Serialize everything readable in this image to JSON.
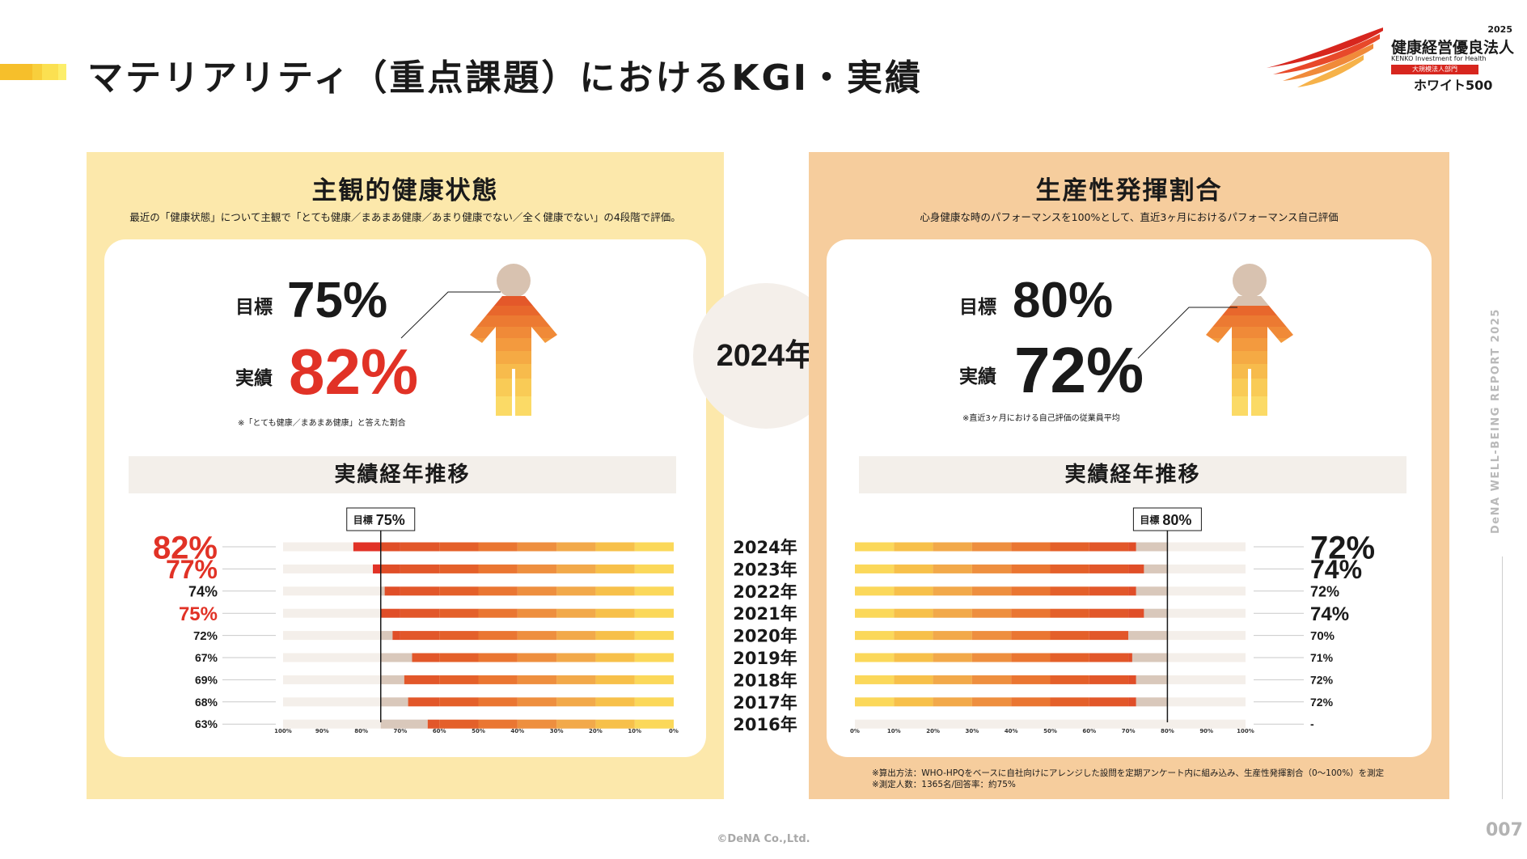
{
  "page": {
    "title": "マテリアリティ（重点課題）におけるKGI・実績",
    "copyright": "©DeNA Co.,Ltd.",
    "page_number": "007",
    "side_text": "DeNA WELL-BEING REPORT 2025"
  },
  "logo": {
    "year": "2025",
    "title": "健康経営優良法人",
    "sub": "KENKO Investment for Health",
    "band": "大規模法人部門",
    "white": "ホワイト500"
  },
  "accent_colors": [
    "#f6bf2b",
    "#f8cf3c",
    "#fbe051",
    "#fcee6a"
  ],
  "center_year": "2024年",
  "left_panel": {
    "title": "主観的健康状態",
    "description": "最近の「健康状態」について主観で「とても健康／まあまあ健康／あまり健康でない／全く健康でない」の4段階で評価。",
    "target_label": "目標",
    "target_value": "75%",
    "actual_label": "実績",
    "actual_value": "82%",
    "note": "※「とても健康／まあまあ健康」と答えた割合",
    "trend_title": "実績経年推移",
    "target_marker": "75%"
  },
  "right_panel": {
    "title": "生産性発揮割合",
    "description": "心身健康な時のパフォーマンスを100%として、直近3ヶ月におけるパフォーマンス自己評価",
    "target_label": "目標",
    "target_value": "80%",
    "actual_label": "実績",
    "actual_value": "72%",
    "note": "※直近3ヶ月における自己評価の従業員平均",
    "trend_title": "実績経年推移",
    "target_marker": "80%",
    "footnote_1": "※算出方法：WHO-HPQをベースに自社向けにアレンジした設問を定期アンケート内に組み込み、生産性発揮割合（0〜100%）を測定",
    "footnote_2": "※測定人数：1365名/回答率：約75%"
  },
  "chart_data": [
    {
      "type": "bar",
      "title": "主観的健康状態 実績経年推移",
      "orientation": "horizontal",
      "axis_direction": "reversed",
      "categories": [
        "2024年",
        "2023年",
        "2022年",
        "2021年",
        "2020年",
        "2019年",
        "2018年",
        "2017年",
        "2016年"
      ],
      "values": [
        82,
        77,
        74,
        75,
        72,
        67,
        69,
        68,
        63
      ],
      "value_labels": [
        "82%",
        "77%",
        "74%",
        "75%",
        "72%",
        "67%",
        "69%",
        "68%",
        "63%"
      ],
      "highlight": [
        true,
        true,
        false,
        true,
        false,
        false,
        false,
        false,
        false
      ],
      "target": 75,
      "target_label": "目標",
      "xlim": [
        0,
        100
      ],
      "ticks": [
        "100%",
        "90%",
        "80%",
        "70%",
        "60%",
        "50%",
        "40%",
        "30%",
        "20%",
        "10%",
        "0%"
      ],
      "tick_values": [
        100,
        90,
        80,
        70,
        60,
        50,
        40,
        30,
        20,
        10,
        0
      ]
    },
    {
      "type": "bar",
      "title": "生産性発揮割合 実績経年推移",
      "orientation": "horizontal",
      "axis_direction": "normal",
      "categories": [
        "2024年",
        "2023年",
        "2022年",
        "2021年",
        "2020年",
        "2019年",
        "2018年",
        "2017年",
        "2016年"
      ],
      "values": [
        72,
        74,
        72,
        74,
        70,
        71,
        72,
        72,
        null
      ],
      "value_labels": [
        "72%",
        "74%",
        "72%",
        "74%",
        "70%",
        "71%",
        "72%",
        "72%",
        "-"
      ],
      "highlight": [
        true,
        true,
        false,
        false,
        false,
        false,
        false,
        false,
        false
      ],
      "target": 80,
      "target_label": "目標",
      "xlim": [
        0,
        100
      ],
      "ticks": [
        "0%",
        "10%",
        "20%",
        "30%",
        "40%",
        "50%",
        "60%",
        "70%",
        "80%",
        "90%",
        "100%"
      ],
      "tick_values": [
        0,
        10,
        20,
        30,
        40,
        50,
        60,
        70,
        80,
        90,
        100
      ]
    }
  ]
}
